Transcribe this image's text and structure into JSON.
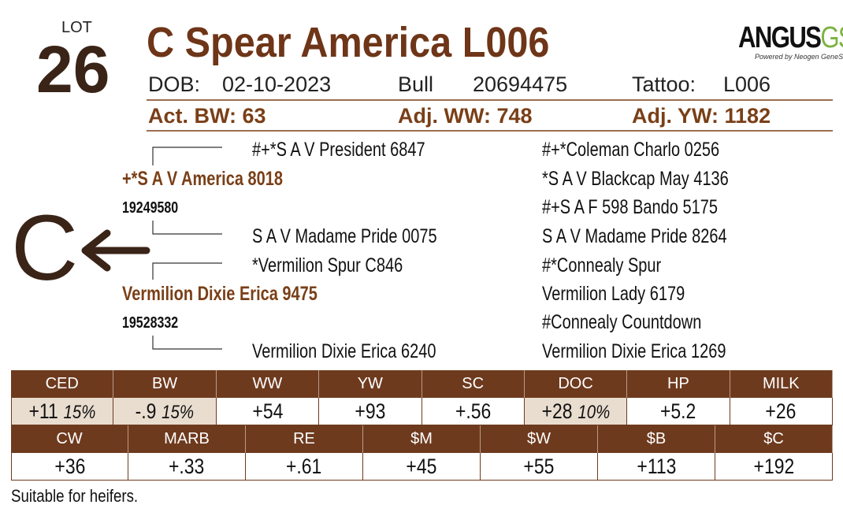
{
  "lot": {
    "label": "LOT",
    "number": "26"
  },
  "title": "C Spear America L006",
  "logo": {
    "brand": "ANGUS",
    "suffix": "GS",
    "tagline": "Powered by Neogen GeneSeek"
  },
  "info": {
    "dob_label": "DOB:",
    "dob": "02-10-2023",
    "sex": "Bull",
    "registration": "20694475",
    "tattoo_label": "Tattoo:",
    "tattoo": "L006"
  },
  "weights": [
    "Act. BW: 63",
    "Adj. WW: 748",
    "Adj. YW: 1182"
  ],
  "calving_ease_letter": "C",
  "pedigree": {
    "sire_sire": "#+*S A V President 6847",
    "sire": "+*S A V America 8018",
    "sire_registration": "19249580",
    "sire_dam": "S A V Madame Pride 0075",
    "dam_sire": "*Vermilion Spur C846",
    "dam": "Vermilion Dixie Erica 9475",
    "dam_registration": "19528332",
    "dam_dam": "Vermilion Dixie Erica 6240",
    "great_grandparents": [
      "#+*Coleman Charlo 0256",
      "*S A V Blackcap May 4136",
      "#+S A F 598 Bando 5175",
      "S A V Madame Pride 8264",
      "#*Connealy Spur",
      "Vermilion Lady 6179",
      "#Connealy Countdown",
      "Vermilion Dixie Erica 1269"
    ]
  },
  "epd_rows": [
    {
      "headers": [
        "CED",
        "BW",
        "WW",
        "YW",
        "SC",
        "DOC",
        "HP",
        "MILK"
      ],
      "values": [
        {
          "value": "+11",
          "percentile": "15%"
        },
        {
          "value": "-.9",
          "percentile": "15%"
        },
        {
          "value": "+54"
        },
        {
          "value": "+93"
        },
        {
          "value": "+.56"
        },
        {
          "value": "+28",
          "percentile": "10%"
        },
        {
          "value": "+5.2"
        },
        {
          "value": "+26"
        }
      ]
    },
    {
      "headers": [
        "CW",
        "MARB",
        "RE",
        "$M",
        "$W",
        "$B",
        "$C"
      ],
      "values": [
        {
          "value": "+36"
        },
        {
          "value": "+.33"
        },
        {
          "value": "+.61"
        },
        {
          "value": "+45"
        },
        {
          "value": "+55"
        },
        {
          "value": "+113"
        },
        {
          "value": "+192"
        }
      ]
    }
  ],
  "footnote": "Suitable for heifers."
}
